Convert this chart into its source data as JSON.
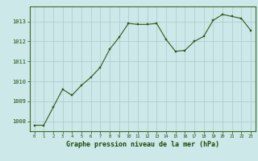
{
  "x": [
    0,
    1,
    2,
    3,
    4,
    5,
    6,
    7,
    8,
    9,
    10,
    11,
    12,
    13,
    14,
    15,
    16,
    17,
    18,
    19,
    20,
    21,
    22,
    23
  ],
  "y": [
    1007.8,
    1007.8,
    1008.7,
    1009.6,
    1009.3,
    1009.8,
    1010.2,
    1010.7,
    1011.6,
    1012.2,
    1012.9,
    1012.85,
    1012.85,
    1012.9,
    1012.1,
    1011.5,
    1011.55,
    1012.0,
    1012.25,
    1013.05,
    1013.35,
    1013.25,
    1013.15,
    1012.55
  ],
  "line_color": "#2d5a1b",
  "marker_color": "#2d5a1b",
  "bg_color": "#cce8e8",
  "grid_color": "#aacaca",
  "xlabel": "Graphe pression niveau de la mer (hPa)",
  "xlabel_color": "#1a4a0a",
  "ylim": [
    1007.5,
    1013.75
  ],
  "xlim": [
    -0.5,
    23.5
  ],
  "yticks": [
    1008,
    1009,
    1010,
    1011,
    1012,
    1013
  ],
  "xticks": [
    0,
    1,
    2,
    3,
    4,
    5,
    6,
    7,
    8,
    9,
    10,
    11,
    12,
    13,
    14,
    15,
    16,
    17,
    18,
    19,
    20,
    21,
    22,
    23
  ],
  "figsize": [
    3.2,
    2.0
  ],
  "dpi": 100
}
